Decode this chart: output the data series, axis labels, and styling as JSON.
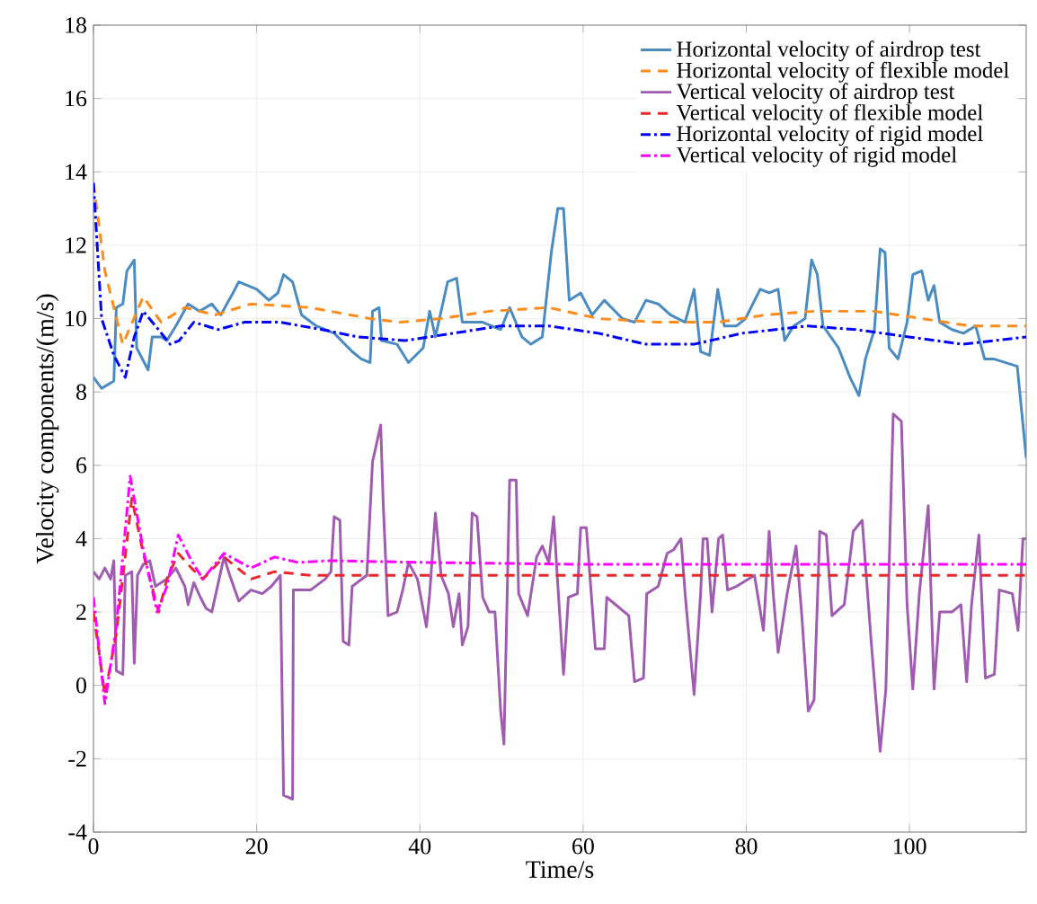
{
  "chart_data": {
    "type": "line",
    "xlabel": "Time/s",
    "ylabel": "Velocity components/(m/s)",
    "xlim": [
      0,
      114.3
    ],
    "ylim": [
      -4,
      18
    ],
    "xticks": [
      0,
      20,
      40,
      60,
      80,
      100
    ],
    "yticks": [
      -4,
      -2,
      0,
      2,
      4,
      6,
      8,
      10,
      12,
      14,
      16,
      18
    ],
    "grid": true,
    "legend": "top right",
    "series": [
      {
        "name": "Horizontal velocity of airdrop test",
        "color": "#4a8cc2",
        "line_style": "solid",
        "x": [
          0,
          1,
          2.5,
          2.8,
          3.6,
          4.1,
          4.7,
          5,
          5.3,
          6,
          6.7,
          7.2,
          8.3,
          9,
          10.1,
          11.6,
          13,
          14.5,
          15.6,
          17.1,
          17.8,
          20,
          21.5,
          22.6,
          23.3,
          24.4,
          25.5,
          27.3,
          29.5,
          31.7,
          32.8,
          33.9,
          34.2,
          35,
          35.3,
          37.2,
          38.6,
          40.4,
          41.2,
          41.9,
          43.4,
          44.5,
          45.2,
          47.7,
          49.9,
          51,
          52.5,
          53.6,
          55,
          56.1,
          56.9,
          57.6,
          58.3,
          59.7,
          61.1,
          62.6,
          64.8,
          66.3,
          67.7,
          69.2,
          70.7,
          72.5,
          73.6,
          74.4,
          75.5,
          76.5,
          77.3,
          78.8,
          79.9,
          81.7,
          82.8,
          83.9,
          84.7,
          85.8,
          87.2,
          88,
          88.7,
          89.4,
          91.3,
          92.7,
          93.8,
          94.6,
          95.7,
          96.4,
          97,
          97.5,
          98.6,
          99.7,
          100.4,
          101.5,
          102.3,
          103,
          103.7,
          105.2,
          106.6,
          108.1,
          109.2,
          110.3,
          113.2,
          114.3
        ],
        "values": [
          8.4,
          8.1,
          8.3,
          10.3,
          10.4,
          11.3,
          11.5,
          11.6,
          9.2,
          8.9,
          8.6,
          9.5,
          9.5,
          9.4,
          9.8,
          10.4,
          10.2,
          10.4,
          10.1,
          10.7,
          11.0,
          10.8,
          10.5,
          10.7,
          11.2,
          11.0,
          10.1,
          9.8,
          9.6,
          9.1,
          8.9,
          8.8,
          10.2,
          10.3,
          9.4,
          9.3,
          8.8,
          9.2,
          10.2,
          9.5,
          11.0,
          11.1,
          9.9,
          9.9,
          9.7,
          10.3,
          9.5,
          9.3,
          9.5,
          11.8,
          13.0,
          13.0,
          10.5,
          10.7,
          10.1,
          10.5,
          10.0,
          9.9,
          10.5,
          10.4,
          10.1,
          9.9,
          10.8,
          9.1,
          9.0,
          10.8,
          9.8,
          9.8,
          10.0,
          10.8,
          10.7,
          10.8,
          9.4,
          9.8,
          10.0,
          11.6,
          11.2,
          9.8,
          9.2,
          8.4,
          7.9,
          8.9,
          9.7,
          11.9,
          11.8,
          9.2,
          8.9,
          9.9,
          11.2,
          11.3,
          10.5,
          10.9,
          9.9,
          9.7,
          9.6,
          9.8,
          8.9,
          8.9,
          8.7,
          6.2
        ]
      },
      {
        "name": "Horizontal velocity of flexible model",
        "color": "#ff8c1a",
        "line_style": "dashed",
        "x": [
          0,
          1.4,
          3.6,
          6.1,
          8.3,
          11.2,
          14.9,
          19.3,
          26.6,
          33.9,
          37.5,
          42.6,
          48.5,
          55.8,
          61.9,
          69.2,
          76.5,
          82.3,
          88.2,
          95.6,
          101.5,
          107.4,
          114.3
        ],
        "values": [
          13.7,
          11.3,
          9.3,
          10.6,
          9.9,
          10.3,
          10.1,
          10.4,
          10.3,
          10.0,
          9.9,
          10.0,
          10.2,
          10.3,
          10.0,
          9.9,
          9.9,
          10.1,
          10.2,
          10.2,
          10.0,
          9.8,
          9.8
        ]
      },
      {
        "name": "Vertical velocity of airdrop test",
        "color": "#a05cb0",
        "line_style": "solid",
        "x": [
          0,
          0.7,
          1.4,
          2.1,
          2.5,
          2.8,
          3.6,
          3.9,
          4.7,
          5.0,
          5.4,
          6.1,
          6.9,
          7.6,
          9,
          10.1,
          11.2,
          11.6,
          12.3,
          13.1,
          13.8,
          14.5,
          15.3,
          16,
          16.7,
          17.8,
          19.3,
          20.7,
          21.8,
          22.9,
          23.3,
          24.4,
          24.5,
          26.6,
          28.4,
          29.1,
          29.5,
          30.2,
          30.6,
          31.3,
          31.7,
          33.5,
          34.2,
          34.7,
          35.2,
          35.5,
          36.1,
          37.2,
          37.9,
          38.6,
          39.7,
          40.8,
          41.2,
          41.9,
          42.6,
          43.5,
          44.1,
          44.8,
          45.2,
          45.9,
          46.4,
          47,
          47.7,
          48.5,
          49.2,
          49.9,
          50.3,
          51,
          51.8,
          52.1,
          53.2,
          54.3,
          55,
          55.8,
          56.4,
          56.8,
          57.6,
          58.2,
          59.3,
          59.7,
          60.4,
          61.5,
          62.6,
          62.9,
          65.6,
          66.3,
          67.4,
          67.8,
          69.2,
          70.3,
          71.1,
          72,
          72.5,
          73.6,
          74.4,
          74.7,
          75.2,
          75.8,
          76.6,
          77.1,
          77.7,
          78.8,
          81,
          82.1,
          82.8,
          83.3,
          83.9,
          85,
          86.1,
          86.8,
          87.6,
          88.3,
          89,
          89.8,
          90.5,
          92,
          93.1,
          94.2,
          95.3,
          96.4,
          97.1,
          98,
          99,
          99.7,
          100.4,
          101.2,
          102.3,
          103,
          103.7,
          105.2,
          106.3,
          107,
          107.6,
          108.5,
          109.3,
          110.4,
          111,
          112.6,
          113.3,
          113.9,
          114.3
        ],
        "values": [
          3.1,
          2.9,
          3.2,
          2.9,
          3.4,
          0.4,
          0.3,
          3.0,
          3.1,
          0.6,
          3.0,
          3.3,
          3.4,
          2.7,
          2.9,
          3.2,
          2.7,
          2.2,
          2.8,
          2.4,
          2.1,
          2.0,
          2.8,
          3.5,
          3.0,
          2.3,
          2.6,
          2.5,
          2.7,
          3.0,
          -3.0,
          -3.1,
          2.6,
          2.6,
          2.9,
          3.1,
          4.6,
          4.5,
          1.2,
          1.1,
          2.7,
          3.0,
          6.1,
          6.6,
          7.1,
          5.0,
          1.9,
          2.0,
          2.6,
          3.35,
          2.9,
          1.6,
          2.5,
          4.7,
          3.0,
          2.5,
          1.6,
          2.5,
          1.1,
          1.6,
          4.7,
          4.6,
          2.4,
          2.0,
          2.0,
          -0.7,
          -1.6,
          5.6,
          5.6,
          2.5,
          1.9,
          3.5,
          3.8,
          3.35,
          4.6,
          3.1,
          0.3,
          2.4,
          2.5,
          4.3,
          4.3,
          1.0,
          1.0,
          2.4,
          1.9,
          0.1,
          0.2,
          2.5,
          2.7,
          3.6,
          3.7,
          4.0,
          2.5,
          -0.25,
          2.5,
          4.0,
          4.0,
          2.0,
          4.0,
          4.1,
          2.6,
          2.7,
          3.0,
          1.5,
          4.2,
          2.5,
          0.9,
          2.5,
          3.8,
          1.9,
          -0.7,
          -0.4,
          4.2,
          4.1,
          1.9,
          2.2,
          4.2,
          4.5,
          1.2,
          -1.8,
          -0.1,
          7.4,
          7.2,
          2.2,
          -0.1,
          2.5,
          4.9,
          -0.1,
          2.0,
          2.0,
          2.2,
          0.1,
          2.2,
          4.1,
          0.2,
          0.3,
          2.6,
          2.5,
          1.5,
          4.0,
          4.0
        ]
      },
      {
        "name": "Vertical velocity of flexible model",
        "color": "#e8282b",
        "line_style": "dashed",
        "x": [
          0,
          1.4,
          2.8,
          4.7,
          6.1,
          8.0,
          9,
          10.4,
          12,
          13.4,
          16,
          19.3,
          22.2,
          26.6,
          40,
          60,
          80,
          100,
          114.3
        ],
        "values": [
          2.0,
          -0.25,
          1.4,
          5.1,
          3.6,
          2.0,
          2.9,
          3.6,
          3.2,
          2.9,
          3.5,
          2.9,
          3.1,
          3.0,
          3.0,
          3.0,
          3.0,
          3.0,
          3.0
        ]
      },
      {
        "name": "Horizontal velocity of rigid model",
        "color": "#0000ff",
        "line_style": "dashdot",
        "x": [
          0,
          1,
          2.5,
          3.9,
          5,
          6.1,
          7.6,
          9.4,
          10.5,
          12.3,
          15.3,
          18.5,
          22.9,
          28,
          32.4,
          38.2,
          44.1,
          49.9,
          55.8,
          61.9,
          67.7,
          73.6,
          79.5,
          87.5,
          93.4,
          99.9,
          106.5,
          114.3
        ],
        "values": [
          13.7,
          10.0,
          9.0,
          8.4,
          9.5,
          10.2,
          9.8,
          9.3,
          9.4,
          9.9,
          9.7,
          9.9,
          9.9,
          9.7,
          9.5,
          9.4,
          9.6,
          9.8,
          9.8,
          9.6,
          9.3,
          9.3,
          9.6,
          9.8,
          9.7,
          9.5,
          9.3,
          9.5
        ]
      },
      {
        "name": "Vertical velocity of rigid model",
        "color": "#ff00ff",
        "line_style": "dashdot",
        "x": [
          0,
          1.4,
          2.8,
          4.5,
          6.1,
          7.8,
          9,
          10.4,
          12,
          13.4,
          16,
          19.3,
          22.2,
          25.1,
          28.8,
          41.2,
          60,
          80,
          100,
          114.3
        ],
        "values": [
          2.4,
          -0.5,
          1.6,
          5.7,
          3.7,
          2.0,
          2.7,
          4.1,
          3.4,
          2.9,
          3.6,
          3.2,
          3.5,
          3.35,
          3.4,
          3.35,
          3.3,
          3.3,
          3.3,
          3.3
        ]
      }
    ]
  }
}
